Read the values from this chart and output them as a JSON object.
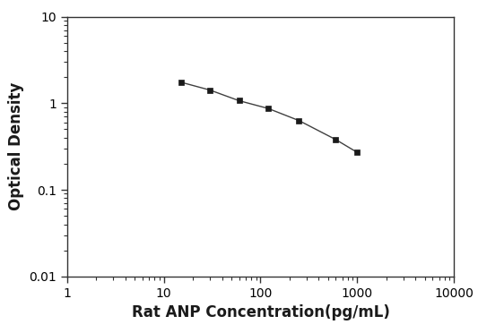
{
  "x_values": [
    15,
    30,
    60,
    120,
    250,
    600,
    1000
  ],
  "y_values": [
    1.75,
    1.42,
    1.07,
    0.87,
    0.63,
    0.38,
    0.27
  ],
  "xlabel": "Rat ANP Concentration(pg/mL)",
  "ylabel": "Optical Density",
  "xlim": [
    1,
    10000
  ],
  "ylim": [
    0.01,
    10
  ],
  "line_color": "#404040",
  "marker": "s",
  "marker_color": "#1a1a1a",
  "marker_size": 5,
  "line_width": 1.0,
  "background_color": "#ffffff",
  "x_ticks": [
    1,
    10,
    100,
    1000,
    10000
  ],
  "x_tick_labels": [
    "1",
    "10",
    "100",
    "1000",
    "10000"
  ],
  "y_ticks": [
    0.01,
    0.1,
    1,
    10
  ],
  "y_tick_labels": [
    "0.01",
    "0.1",
    "1",
    "10"
  ],
  "xlabel_fontsize": 12,
  "ylabel_fontsize": 12,
  "tick_fontsize": 10
}
